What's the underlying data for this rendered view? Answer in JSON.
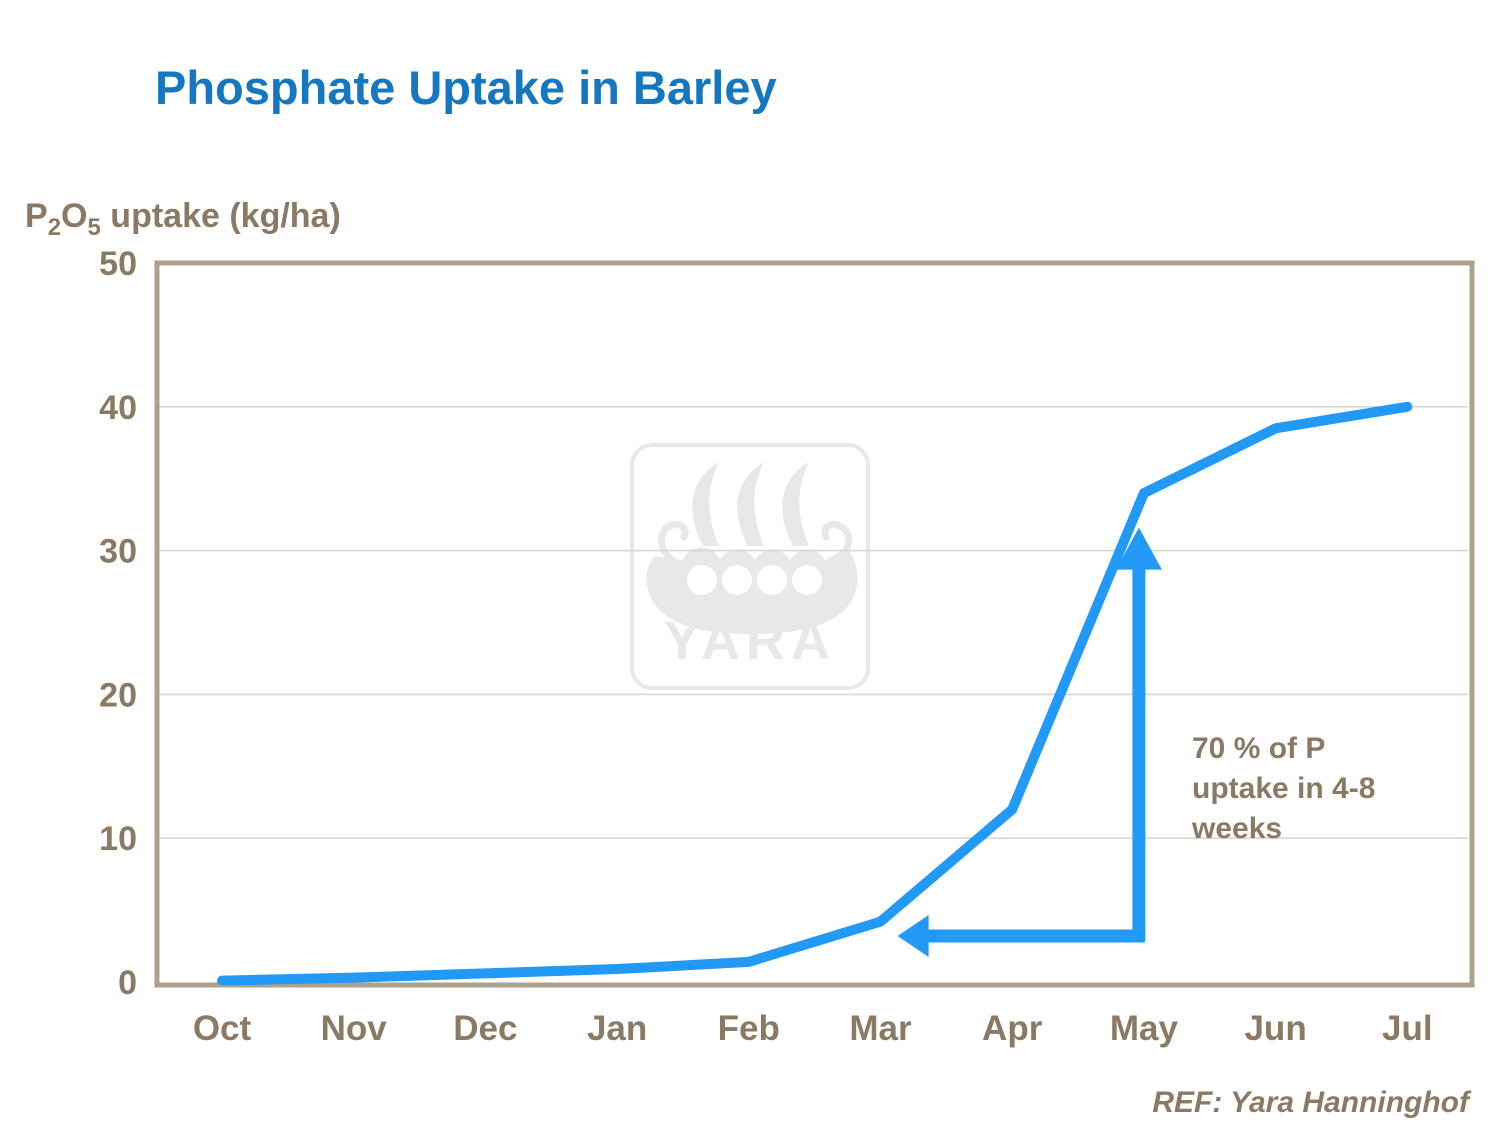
{
  "header": {
    "title": "Phosphate Uptake in Barley"
  },
  "footer": {
    "reference": "REF: Yara Hanninghof"
  },
  "watermark": {
    "brand": "YARA",
    "icon": "yara-viking-ship-logo"
  },
  "colors": {
    "title_blue": "#1577C0",
    "text_brown": "#8A7963",
    "line_blue": "#2299F4",
    "frame_tan": "#ADA08F",
    "grid_gray": "#D9D6D2",
    "watermark_gray": "#E8E8E8",
    "background": "#FFFFFF"
  },
  "y_axis_title_parts": {
    "p": "P",
    "p_sub": "2",
    "o": "O",
    "o_sub": "5",
    "rest": " uptake (kg/ha)"
  },
  "chart_data": {
    "type": "line",
    "title": "Phosphate Uptake in Barley",
    "y_axis_title": "P2O5 uptake (kg/ha)",
    "categories": [
      "Oct",
      "Nov",
      "Dec",
      "Jan",
      "Feb",
      "Mar",
      "Apr",
      "May",
      "Jun",
      "Jul"
    ],
    "series": [
      {
        "name": "P2O5 uptake (kg/ha)",
        "values": [
          0.1,
          0.3,
          0.6,
          0.9,
          1.4,
          4.2,
          12,
          34,
          38.5,
          40
        ]
      }
    ],
    "ylim": [
      0,
      50
    ],
    "y_ticks": [
      0,
      10,
      20,
      30,
      40,
      50
    ],
    "grid": "horizontal",
    "legend": "none",
    "annotation": {
      "text_lines": [
        "70 % of P",
        "uptake in 4-8",
        "weeks"
      ],
      "arrows": {
        "vertical": {
          "month": "May",
          "from_value": 2.9,
          "to_value": 31.6
        },
        "horizontal": {
          "from_month": "May",
          "points_to_month": "Mar",
          "tip_fraction": 0.13,
          "value": 3.2
        }
      }
    }
  }
}
